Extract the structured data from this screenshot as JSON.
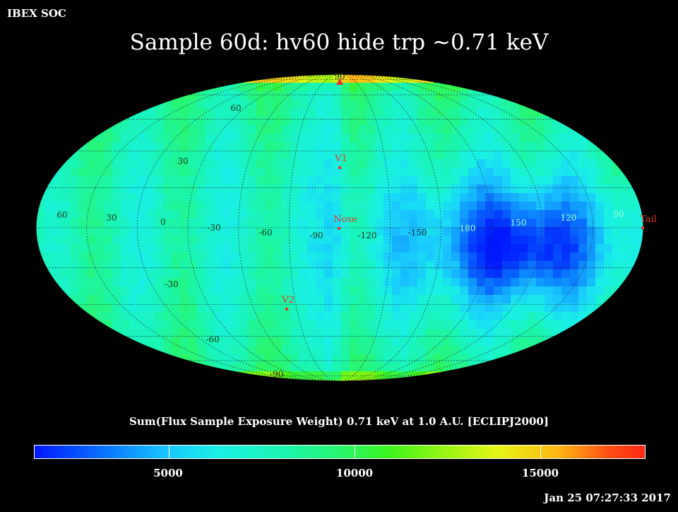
{
  "header": {
    "org": "IBEX SOC"
  },
  "chart_data": {
    "type": "heatmap",
    "projection": "Aitoff / Hammer all-sky",
    "title": "Sample 60d: hv60 hide trp ~0.71 keV",
    "colorbar_label": "Sum(Flux Sample Exposure Weight)  0.71 keV at 1.0 A.U. [ECLIPJ2000]",
    "colorbar_ticks": [
      "5000",
      "10000",
      "15000"
    ],
    "colorbar_range": [
      0,
      17500
    ],
    "lon_labels": [
      "60",
      "30",
      "0",
      "-30",
      "-60",
      "-90",
      "-120",
      "-150",
      "180",
      "150",
      "120",
      "90"
    ],
    "lat_labels": [
      "90",
      "60",
      "30",
      "-30",
      "-60",
      "-90"
    ],
    "markers": [
      {
        "label": "V1"
      },
      {
        "label": "Nose"
      },
      {
        "label": "V2"
      },
      {
        "label": "Tail"
      }
    ],
    "colors": {
      "marker": "#e23b2e",
      "grid": "#333333",
      "tick_text_light": "#c8ffc8",
      "tick_text_dark": "#99ffcc"
    }
  },
  "footer": {
    "timestamp": "Jan 25 07:27:33 2017"
  }
}
